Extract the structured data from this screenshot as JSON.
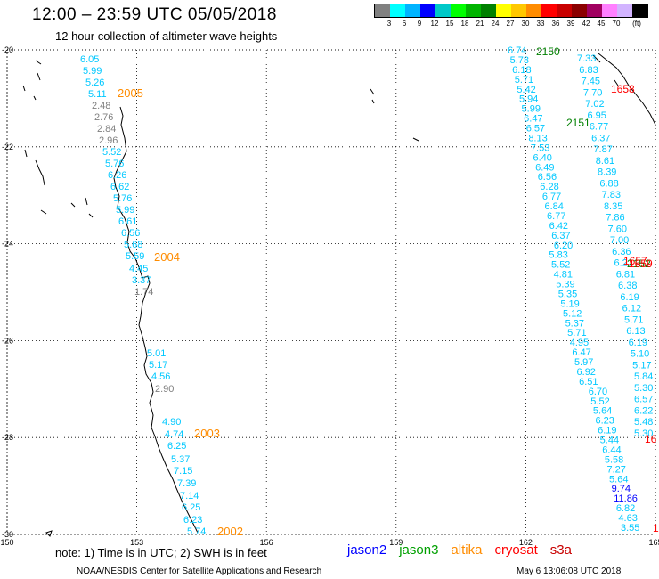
{
  "header": {
    "title": "12:00 – 23:59 UTC 05/05/2018",
    "subtitle": "12 hour collection of altimeter wave heights"
  },
  "legend": {
    "colors": [
      "#808080",
      "#00ffff",
      "#00b4ff",
      "#0000ff",
      "#00c8c8",
      "#00ff00",
      "#00b400",
      "#008000",
      "#ffff00",
      "#ffc800",
      "#ff8c00",
      "#ff0000",
      "#c80000",
      "#8b0000",
      "#a00060",
      "#ff80ff",
      "#d2b4ff",
      "#000000"
    ],
    "labels": [
      "3",
      "6",
      "9",
      "12",
      "15",
      "18",
      "21",
      "24",
      "27",
      "30",
      "33",
      "36",
      "39",
      "42",
      "45",
      "70",
      "(ft)"
    ]
  },
  "map": {
    "lon_range": [
      150,
      165
    ],
    "lat_range": [
      -30,
      -20
    ],
    "lon_ticks": [
      "150",
      "153",
      "156",
      "159",
      "162",
      "165"
    ],
    "lat_ticks": [
      "-20",
      "-22",
      "-24",
      "-26",
      "-28",
      "-30"
    ],
    "grid": "dotted"
  },
  "tracks": {
    "west_swh": [
      {
        "v": "6.05",
        "c": "#00c8ff"
      },
      {
        "v": "5.99",
        "c": "#00c8ff"
      },
      {
        "v": "5.26",
        "c": "#00c8ff"
      },
      {
        "v": "5.11",
        "c": "#00c8ff"
      },
      {
        "v": "2.48",
        "c": "#808080"
      },
      {
        "v": "2.76",
        "c": "#808080"
      },
      {
        "v": "2.84",
        "c": "#808080"
      },
      {
        "v": "2.96",
        "c": "#808080"
      },
      {
        "v": "5.52",
        "c": "#00c8ff"
      },
      {
        "v": "5.76",
        "c": "#00c8ff"
      },
      {
        "v": "6.26",
        "c": "#00c8ff"
      },
      {
        "v": "6.62",
        "c": "#00c8ff"
      },
      {
        "v": "5.76",
        "c": "#00c8ff"
      },
      {
        "v": "5.99",
        "c": "#00c8ff"
      },
      {
        "v": "6.61",
        "c": "#00c8ff"
      },
      {
        "v": "6.56",
        "c": "#00c8ff"
      },
      {
        "v": "5.68",
        "c": "#00c8ff"
      },
      {
        "v": "5.59",
        "c": "#00c8ff"
      },
      {
        "v": "4.45",
        "c": "#00c8ff"
      },
      {
        "v": "3.37",
        "c": "#00c8ff"
      },
      {
        "v": "1.74",
        "c": "#808080"
      },
      {
        "v": "5.01",
        "c": "#00c8ff"
      },
      {
        "v": "5.17",
        "c": "#00c8ff"
      },
      {
        "v": "4.56",
        "c": "#00c8ff"
      },
      {
        "v": "2.90",
        "c": "#808080"
      },
      {
        "v": "4.90",
        "c": "#00c8ff"
      },
      {
        "v": "4.74",
        "c": "#00c8ff"
      },
      {
        "v": "6.25",
        "c": "#00c8ff"
      },
      {
        "v": "5.37",
        "c": "#00c8ff"
      },
      {
        "v": "7.15",
        "c": "#00c8ff"
      },
      {
        "v": "7.39",
        "c": "#00c8ff"
      },
      {
        "v": "7.14",
        "c": "#00c8ff"
      },
      {
        "v": "6.25",
        "c": "#00c8ff"
      },
      {
        "v": "6.23",
        "c": "#00c8ff"
      },
      {
        "v": "5.74",
        "c": "#00c8ff"
      }
    ],
    "west_times": [
      {
        "v": "2005",
        "c": "#ff8c00"
      },
      {
        "v": "2004",
        "c": "#ff8c00"
      },
      {
        "v": "2003",
        "c": "#ff8c00"
      },
      {
        "v": "2002",
        "c": "#ff8c00"
      }
    ],
    "east_a": [
      "6.74",
      "5.78",
      "6.18",
      "5.71",
      "5.42",
      "5.94",
      "5.99",
      "6.47",
      "6.57",
      "8.13",
      "7.53",
      "6.40",
      "6.49",
      "6.56",
      "6.28",
      "6.77",
      "6.84",
      "6.77",
      "6.42",
      "6.37",
      "6.20",
      "5.83",
      "5.52",
      "4.81",
      "5.39",
      "5.35",
      "5.19",
      "5.12",
      "5.37",
      "5.71",
      "4.95",
      "6.47",
      "5.97",
      "6.92",
      "6.51",
      "6.70",
      "5.52",
      "5.64",
      "6.23",
      "6.19",
      "5.44",
      "6.44",
      "5.58",
      "7.27",
      "5.64",
      "9.74",
      "11.86",
      "6.82",
      "4.63",
      "3.55"
    ],
    "east_a_colors": {
      "9.74": "#0000ff",
      "11.86": "#0000ff"
    },
    "east_b": [
      "7.33",
      "6.83",
      "7.45",
      "7.70",
      "7.02",
      "6.95",
      "6.77",
      "6.37",
      "7.87",
      "8.61",
      "8.39",
      "6.88",
      "7.83",
      "8.35",
      "7.86",
      "7.60",
      "7.00",
      "6.36",
      "6.21",
      "6.81",
      "6.38",
      "6.19",
      "6.12",
      "5.71",
      "6.13",
      "6.19",
      "5.10",
      "5.17",
      "5.84",
      "5.30",
      "6.57",
      "6.22",
      "5.48",
      "5.30"
    ],
    "east_times": [
      {
        "v": "2150",
        "c": "#008000"
      },
      {
        "v": "2151",
        "c": "#008000"
      },
      {
        "v": "1658",
        "c": "#ff0000"
      },
      {
        "v": "1657",
        "c": "#ff0000"
      },
      {
        "v": "2152",
        "c": "#008000"
      },
      {
        "v": "1659",
        "c": "#ff0000"
      },
      {
        "v": "16",
        "c": "#ff0000"
      },
      {
        "v": "1",
        "c": "#ff0000"
      }
    ]
  },
  "notes": {
    "note": "note:  1) Time is in UTC;  2) SWH is in feet",
    "footer": "NOAA/NESDIS Center for Satellite Applications and Research",
    "stamp": "May  6 13:06:08 UTC 2018"
  },
  "satellites": [
    {
      "name": "jason2",
      "color": "#0000ff"
    },
    {
      "name": "jason3",
      "color": "#00a000"
    },
    {
      "name": "altika",
      "color": "#ff8c00"
    },
    {
      "name": "cryosat",
      "color": "#ff0000"
    },
    {
      "name": "s3a",
      "color": "#c80000"
    }
  ]
}
